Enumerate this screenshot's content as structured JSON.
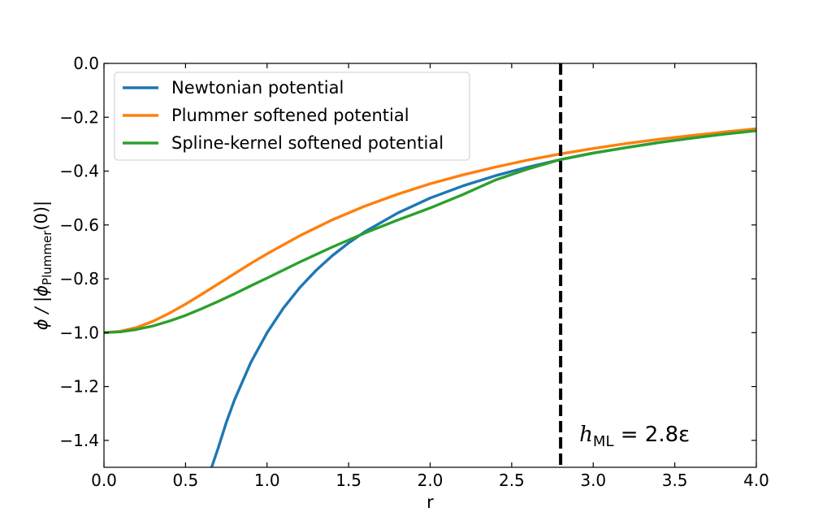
{
  "chart_data": {
    "type": "line",
    "title": "",
    "xlabel": "r",
    "ylabel": {
      "main": "ϕ / |ϕ",
      "subscript": "Plummer",
      "tail": "(0)|"
    },
    "xlim": [
      0.0,
      4.0
    ],
    "ylim": [
      -1.5,
      0.0
    ],
    "xticks": [
      0.0,
      0.5,
      1.0,
      1.5,
      2.0,
      2.5,
      3.0,
      3.5,
      4.0
    ],
    "xtick_labels": [
      "0.0",
      "0.5",
      "1.0",
      "1.5",
      "2.0",
      "2.5",
      "3.0",
      "3.5",
      "4.0"
    ],
    "yticks": [
      0.0,
      -0.2,
      -0.4,
      -0.6,
      -0.8,
      -1.0,
      -1.2,
      -1.4
    ],
    "ytick_labels": [
      "0.0",
      "−0.2",
      "−0.4",
      "−0.6",
      "−0.8",
      "−1.0",
      "−1.2",
      "−1.4"
    ],
    "grid": false,
    "legend_position": "top-left",
    "series": [
      {
        "name": "Newtonian potential",
        "color": "#1f77b4",
        "x": [
          0.66,
          0.7,
          0.75,
          0.8,
          0.9,
          1.0,
          1.1,
          1.2,
          1.3,
          1.4,
          1.5,
          1.6,
          1.8,
          2.0,
          2.2,
          2.4,
          2.6,
          2.8,
          3.0,
          3.2,
          3.4,
          3.6,
          3.8,
          4.0
        ],
        "y": [
          -1.5,
          -1.429,
          -1.333,
          -1.25,
          -1.111,
          -1.0,
          -0.909,
          -0.833,
          -0.769,
          -0.714,
          -0.667,
          -0.625,
          -0.556,
          -0.5,
          -0.455,
          -0.417,
          -0.385,
          -0.357,
          -0.333,
          -0.313,
          -0.294,
          -0.278,
          -0.263,
          -0.25
        ]
      },
      {
        "name": "Plummer softened potential",
        "color": "#ff7f0e",
        "x": [
          0.0,
          0.1,
          0.2,
          0.3,
          0.4,
          0.5,
          0.6,
          0.7,
          0.8,
          0.9,
          1.0,
          1.2,
          1.4,
          1.6,
          1.8,
          2.0,
          2.2,
          2.4,
          2.6,
          2.8,
          3.0,
          3.2,
          3.4,
          3.6,
          3.8,
          4.0
        ],
        "y": [
          -1.0,
          -0.995,
          -0.981,
          -0.958,
          -0.928,
          -0.894,
          -0.857,
          -0.819,
          -0.781,
          -0.743,
          -0.707,
          -0.64,
          -0.581,
          -0.53,
          -0.486,
          -0.447,
          -0.414,
          -0.385,
          -0.359,
          -0.336,
          -0.316,
          -0.298,
          -0.282,
          -0.268,
          -0.255,
          -0.243
        ]
      },
      {
        "name": "Spline-kernel softened potential",
        "color": "#2ca02c",
        "x": [
          0.0,
          0.1,
          0.2,
          0.3,
          0.4,
          0.5,
          0.6,
          0.7,
          0.8,
          0.9,
          1.0,
          1.2,
          1.4,
          1.6,
          1.8,
          2.0,
          2.2,
          2.4,
          2.6,
          2.8,
          3.0,
          3.2,
          3.4,
          3.6,
          3.8,
          4.0
        ],
        "y": [
          -1.0,
          -0.997,
          -0.988,
          -0.975,
          -0.957,
          -0.936,
          -0.911,
          -0.884,
          -0.856,
          -0.826,
          -0.797,
          -0.738,
          -0.682,
          -0.63,
          -0.582,
          -0.537,
          -0.487,
          -0.433,
          -0.392,
          -0.357,
          -0.333,
          -0.313,
          -0.294,
          -0.278,
          -0.263,
          -0.25
        ]
      }
    ],
    "annotations": [
      {
        "type": "vline",
        "x": 2.8,
        "style": "dashed",
        "color": "#000000"
      },
      {
        "type": "text",
        "symbol": "h",
        "subscript": "ML",
        "rest": " = 2.8ε",
        "x": 2.9,
        "y": -1.37
      }
    ]
  }
}
